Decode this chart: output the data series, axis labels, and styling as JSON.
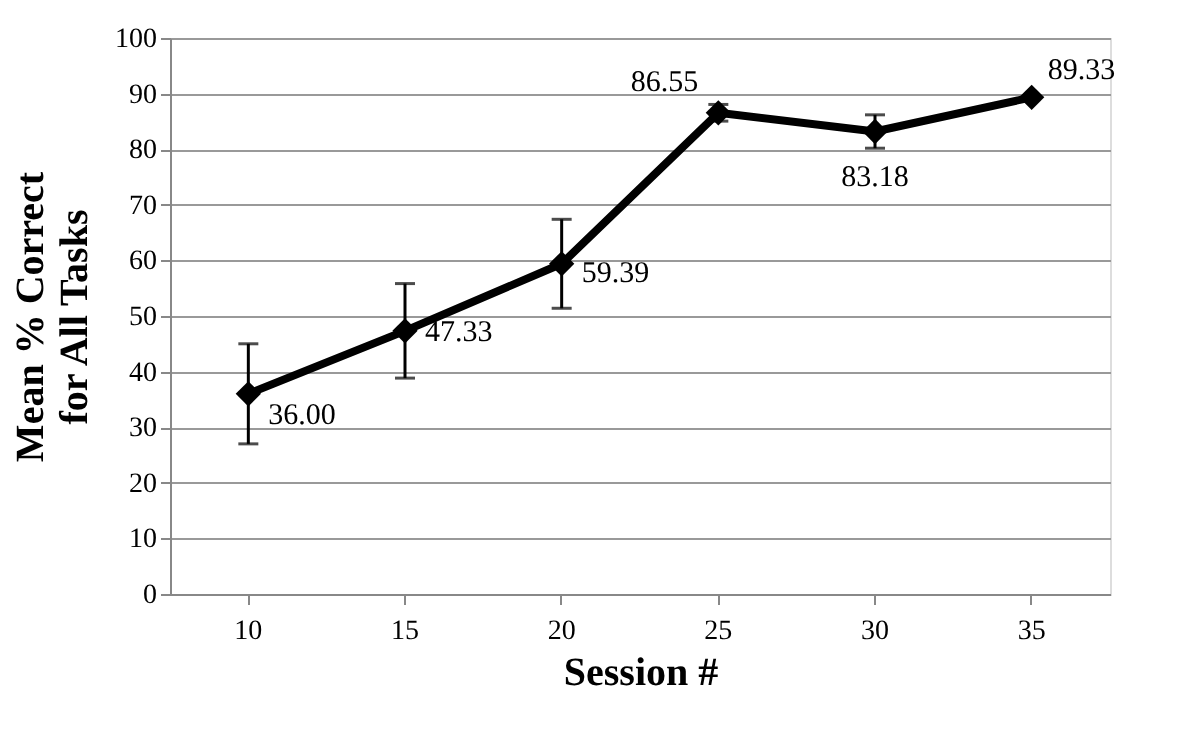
{
  "chart_data": {
    "type": "line",
    "xlabel": "Session #",
    "ylabel": "Mean % Correct for All Tasks",
    "categories": [
      "10",
      "15",
      "20",
      "25",
      "30",
      "35"
    ],
    "series": [
      {
        "color": "#000000",
        "values": [
          36.0,
          47.33,
          59.39,
          86.55,
          83.18,
          89.33
        ],
        "errors": [
          9,
          8.5,
          8,
          1.5,
          3,
          null
        ],
        "value_labels": [
          "36.00",
          "47.33",
          "59.39",
          "86.55",
          "83.18",
          "89.33"
        ]
      }
    ],
    "data_labels": true,
    "ylim": [
      0,
      100
    ],
    "yticks": [
      0,
      10,
      20,
      30,
      40,
      50,
      60,
      70,
      80,
      90,
      100
    ],
    "grid": "y",
    "marker": "diamond",
    "line_style": "solid"
  }
}
